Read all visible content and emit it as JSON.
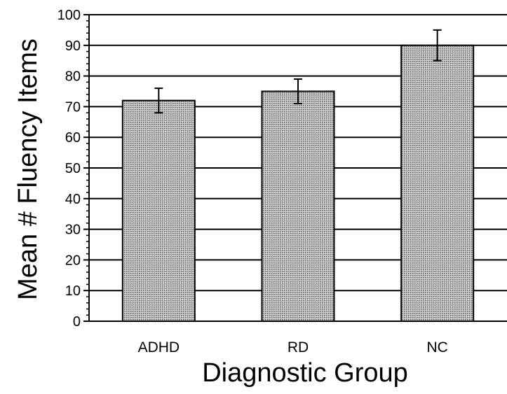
{
  "chart_data": {
    "type": "bar",
    "categories": [
      "ADHD",
      "RD",
      "NC"
    ],
    "values": [
      72,
      75,
      90
    ],
    "error": [
      4,
      4,
      5
    ],
    "xlabel": "Diagnostic Group",
    "ylabel": "Mean # Fluency Items",
    "ylim": [
      0,
      100
    ],
    "yticks": [
      "0",
      "10",
      "20",
      "30",
      "40",
      "50",
      "60",
      "70",
      "80",
      "90",
      "100"
    ],
    "grid": true,
    "bar_color": "#a8a8a8"
  }
}
